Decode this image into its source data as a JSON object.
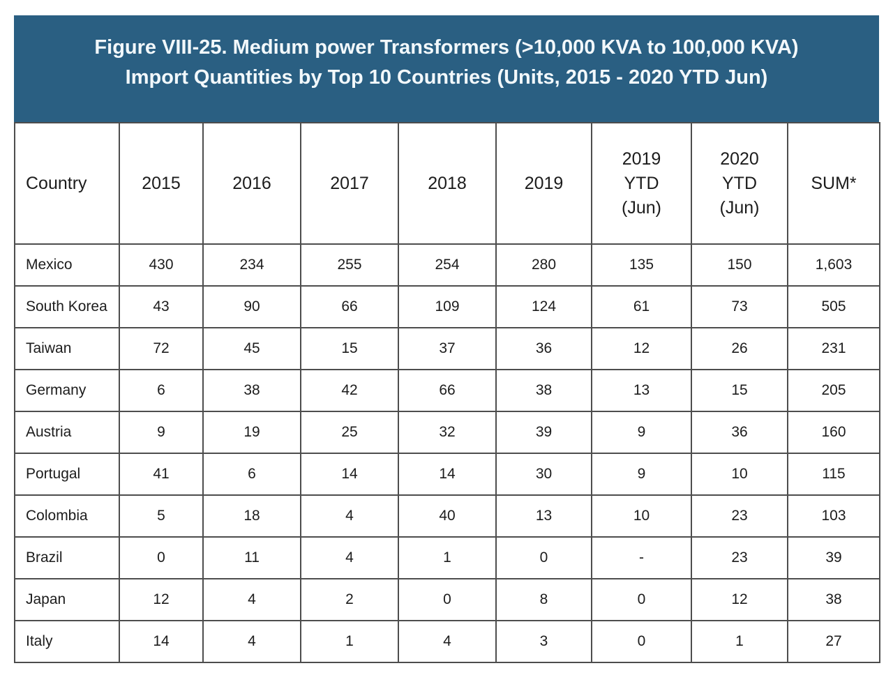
{
  "header": {
    "title_line1": "Figure VIII-25. Medium power Transformers (>10,000 KVA to 100,000 KVA)",
    "title_line2": "Import Quantities by Top 10 Countries (Units, 2015 - 2020 YTD Jun)"
  },
  "colors": {
    "title_bar_bg": "#2A5F82",
    "title_bar_text": "#F2F8FB",
    "grid_line": "#4D4D4D",
    "table_bg": "#FFFFFF",
    "table_text": "#1C1C1C"
  },
  "chart_data": {
    "type": "table",
    "title": "Figure VIII-25. Medium power Transformers (>10,000 KVA to 100,000 KVA) Import Quantities by Top 10 Countries (Units, 2015 - 2020 YTD Jun)",
    "columns": [
      "Country",
      "2015",
      "2016",
      "2017",
      "2018",
      "2019",
      "2019\nYTD\n(Jun)",
      "2020\nYTD\n(Jun)",
      "SUM*"
    ],
    "rows": [
      {
        "country": "Mexico",
        "values": [
          "430",
          "234",
          "255",
          "254",
          "280",
          "135",
          "150",
          "1,603"
        ]
      },
      {
        "country": "South Korea",
        "values": [
          "43",
          "90",
          "66",
          "109",
          "124",
          "61",
          "73",
          "505"
        ]
      },
      {
        "country": "Taiwan",
        "values": [
          "72",
          "45",
          "15",
          "37",
          "36",
          "12",
          "26",
          "231"
        ]
      },
      {
        "country": "Germany",
        "values": [
          "6",
          "38",
          "42",
          "66",
          "38",
          "13",
          "15",
          "205"
        ]
      },
      {
        "country": "Austria",
        "values": [
          "9",
          "19",
          "25",
          "32",
          "39",
          "9",
          "36",
          "160"
        ]
      },
      {
        "country": "Portugal",
        "values": [
          "41",
          "6",
          "14",
          "14",
          "30",
          "9",
          "10",
          "115"
        ]
      },
      {
        "country": "Colombia",
        "values": [
          "5",
          "18",
          "4",
          "40",
          "13",
          "10",
          "23",
          "103"
        ]
      },
      {
        "country": "Brazil",
        "values": [
          "0",
          "11",
          "4",
          "1",
          "0",
          "-",
          "23",
          "39"
        ]
      },
      {
        "country": "Japan",
        "values": [
          "12",
          "4",
          "2",
          "0",
          "8",
          "0",
          "12",
          "38"
        ]
      },
      {
        "country": "Italy",
        "values": [
          "14",
          "4",
          "1",
          "4",
          "3",
          "0",
          "1",
          "27"
        ]
      }
    ]
  }
}
